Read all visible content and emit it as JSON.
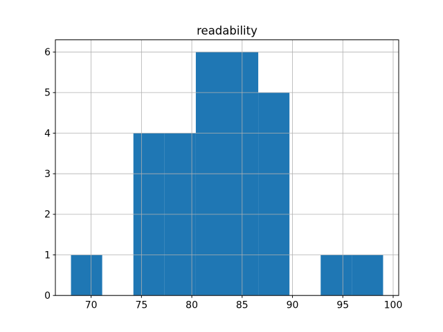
{
  "figure": {
    "background": "#ffffff"
  },
  "chart_data": {
    "type": "bar",
    "subtype": "histogram",
    "title": "readability",
    "xlabel": "",
    "ylabel": "",
    "bin_edges": [
      68.0,
      71.1,
      74.2,
      77.3,
      80.4,
      83.5,
      86.6,
      89.7,
      92.8,
      95.9,
      99.0
    ],
    "counts": [
      1,
      0,
      4,
      4,
      6,
      6,
      5,
      0,
      1,
      1
    ],
    "xticks": [
      70,
      75,
      80,
      85,
      90,
      95,
      100
    ],
    "yticks": [
      0,
      1,
      2,
      3,
      4,
      5,
      6
    ],
    "xlim": [
      66.45,
      100.55
    ],
    "ylim": [
      0,
      6.3
    ],
    "grid": true,
    "grid_over_bars": true,
    "legend": "none",
    "bar_color": "#1f77b4",
    "grid_color": "#b0b0b0",
    "axis_color": "#000000",
    "text_color": "#000000"
  }
}
